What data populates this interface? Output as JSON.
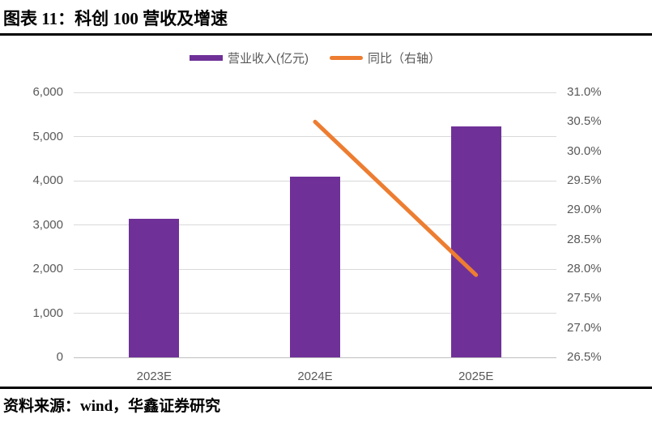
{
  "header": {
    "title": "图表 11：科创 100 营收及增速"
  },
  "footer": {
    "source": "资料来源：wind，华鑫证券研究"
  },
  "legend": [
    {
      "label": "营业收入(亿元)",
      "type": "bar",
      "color": "#6F3198"
    },
    {
      "label": "同比（右轴）",
      "type": "line",
      "color": "#ED7D31"
    }
  ],
  "colors": {
    "bar": "#6F3198",
    "line": "#ED7D31",
    "muted_text": "#595959",
    "grid": "#D9D9D9",
    "axis_line": "#BFBFBF"
  },
  "chart_data": {
    "type": "bar",
    "title": "科创 100 营收及增速",
    "categories": [
      "2023E",
      "2024E",
      "2025E"
    ],
    "series": [
      {
        "name": "营业收入(亿元)",
        "type": "bar",
        "axis": "left",
        "color": "#6F3198",
        "values": [
          3130,
          4090,
          5230
        ]
      },
      {
        "name": "同比（右轴）",
        "type": "line",
        "axis": "right",
        "color": "#ED7D31",
        "unit": "%",
        "values": [
          null,
          30.5,
          27.9
        ]
      }
    ],
    "left_axis": {
      "min": 0,
      "max": 6000,
      "ticks": [
        "6,000",
        "5,000",
        "4,000",
        "3,000",
        "2,000",
        "1,000",
        "0"
      ]
    },
    "right_axis": {
      "min": 26.5,
      "max": 31.0,
      "ticks": [
        "31.0%",
        "30.5%",
        "30.0%",
        "29.5%",
        "29.0%",
        "28.5%",
        "28.0%",
        "27.5%",
        "27.0%",
        "26.5%"
      ]
    },
    "grid": true,
    "legend_position": "top",
    "xlabel": "",
    "ylabel": ""
  }
}
